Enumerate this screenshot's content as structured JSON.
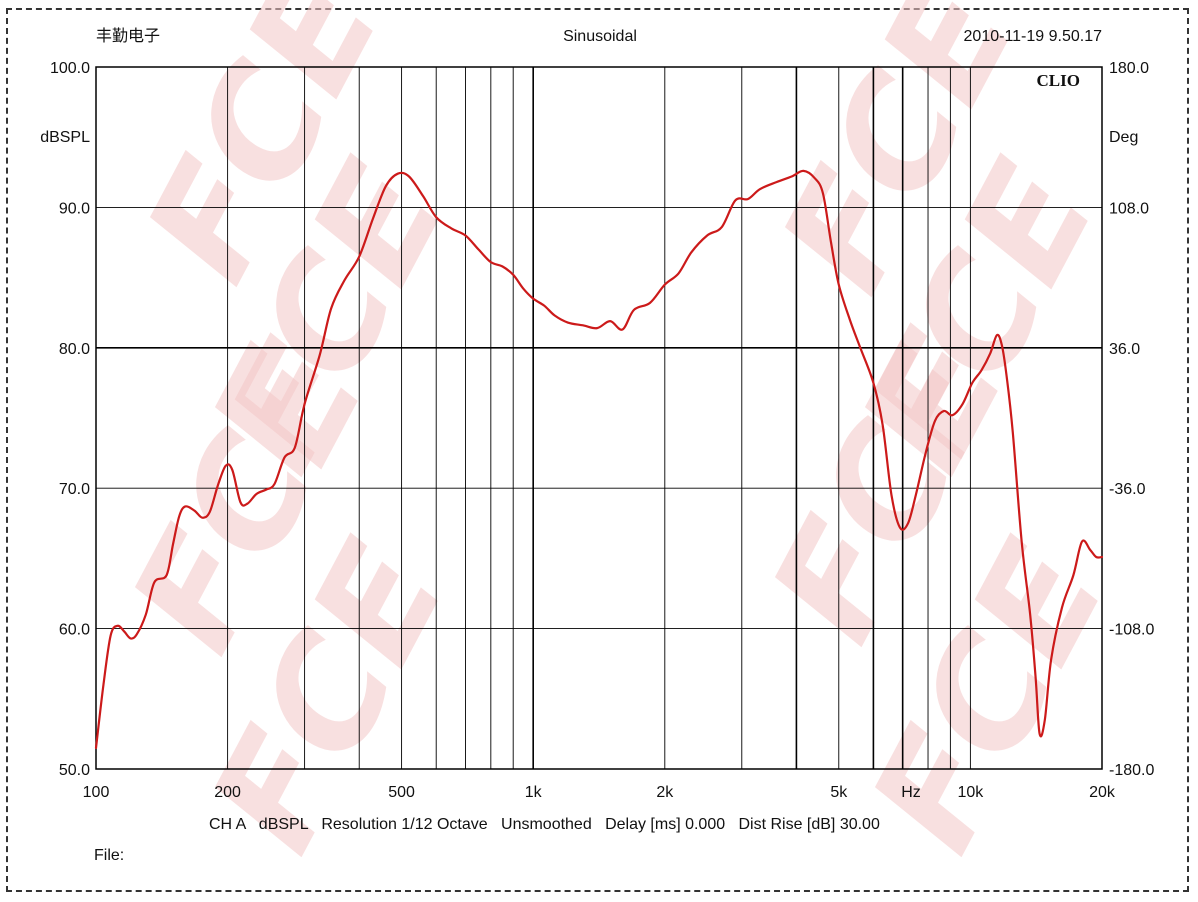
{
  "header": {
    "left": "丰勤电子",
    "center": "Sinusoidal",
    "right": "2010-11-19 9.50.17"
  },
  "brand": "CLIO",
  "watermark": "FCE",
  "footer": {
    "settings": "CH A   dBSPL   Resolution 1/12 Octave   Unsmoothed   Delay [ms] 0.000   Dist Rise [dB] 30.00",
    "file": "File:"
  },
  "colors": {
    "curve": "#cc1a1a",
    "grid": "#000000",
    "watermark": "#f4c7c7"
  },
  "chart_data": {
    "type": "line",
    "x_scale": "log",
    "xlim": [
      100,
      20000
    ],
    "ylim": [
      50,
      100
    ],
    "y2lim": [
      -180,
      180
    ],
    "ylabel": "dBSPL",
    "y2label": "Deg",
    "xunit": "Hz",
    "x_ticks": [
      {
        "v": 100,
        "label": "100"
      },
      {
        "v": 200,
        "label": "200"
      },
      {
        "v": 500,
        "label": "500"
      },
      {
        "v": 1000,
        "label": "1k"
      },
      {
        "v": 2000,
        "label": "2k"
      },
      {
        "v": 5000,
        "label": "5k"
      },
      {
        "v": 10000,
        "label": "10k"
      },
      {
        "v": 20000,
        "label": "20k"
      }
    ],
    "y_ticks": [
      {
        "v": 100,
        "label": "100.0"
      },
      {
        "v": 90,
        "label": "90.0"
      },
      {
        "v": 80,
        "label": "80.0"
      },
      {
        "v": 70,
        "label": "70.0"
      },
      {
        "v": 60,
        "label": "60.0"
      },
      {
        "v": 50,
        "label": "50.0"
      }
    ],
    "y2_ticks": [
      {
        "v": 180,
        "label": "180.0"
      },
      {
        "v": 108,
        "label": "108.0"
      },
      {
        "v": 36,
        "label": "36.0"
      },
      {
        "v": -36,
        "label": "-36.0"
      },
      {
        "v": -108,
        "label": "-108.0"
      },
      {
        "v": -180,
        "label": "-180.0"
      }
    ],
    "grid": true,
    "series": [
      {
        "points": [
          [
            100,
            51.5
          ],
          [
            104,
            56
          ],
          [
            108,
            59.5
          ],
          [
            112,
            60.2
          ],
          [
            116,
            59.8
          ],
          [
            120,
            59.3
          ],
          [
            124,
            59.6
          ],
          [
            130,
            61
          ],
          [
            136,
            63.3
          ],
          [
            145,
            63.8
          ],
          [
            150,
            66
          ],
          [
            155,
            68
          ],
          [
            160,
            68.7
          ],
          [
            168,
            68.4
          ],
          [
            175,
            67.9
          ],
          [
            182,
            68.3
          ],
          [
            190,
            70.2
          ],
          [
            198,
            71.6
          ],
          [
            205,
            71.3
          ],
          [
            214,
            69
          ],
          [
            222,
            68.9
          ],
          [
            233,
            69.6
          ],
          [
            245,
            69.9
          ],
          [
            256,
            70.3
          ],
          [
            270,
            72.2
          ],
          [
            285,
            72.9
          ],
          [
            300,
            76
          ],
          [
            325,
            79.5
          ],
          [
            345,
            82.8
          ],
          [
            370,
            84.8
          ],
          [
            400,
            86.5
          ],
          [
            430,
            89.2
          ],
          [
            460,
            91.5
          ],
          [
            490,
            92.4
          ],
          [
            520,
            92.2
          ],
          [
            560,
            90.8
          ],
          [
            600,
            89.3
          ],
          [
            650,
            88.5
          ],
          [
            700,
            88
          ],
          [
            750,
            87
          ],
          [
            800,
            86.1
          ],
          [
            850,
            85.8
          ],
          [
            900,
            85.2
          ],
          [
            950,
            84.2
          ],
          [
            1000,
            83.5
          ],
          [
            1060,
            83
          ],
          [
            1120,
            82.3
          ],
          [
            1200,
            81.8
          ],
          [
            1300,
            81.6
          ],
          [
            1400,
            81.4
          ],
          [
            1500,
            81.9
          ],
          [
            1600,
            81.3
          ],
          [
            1700,
            82.7
          ],
          [
            1850,
            83.2
          ],
          [
            2000,
            84.5
          ],
          [
            2150,
            85.3
          ],
          [
            2300,
            86.8
          ],
          [
            2500,
            88
          ],
          [
            2700,
            88.6
          ],
          [
            2900,
            90.5
          ],
          [
            3100,
            90.6
          ],
          [
            3300,
            91.3
          ],
          [
            3600,
            91.8
          ],
          [
            3900,
            92.2
          ],
          [
            4150,
            92.6
          ],
          [
            4400,
            92.1
          ],
          [
            4600,
            91
          ],
          [
            4800,
            87.5
          ],
          [
            5000,
            84.5
          ],
          [
            5300,
            82
          ],
          [
            5600,
            80
          ],
          [
            6000,
            77.5
          ],
          [
            6300,
            74.5
          ],
          [
            6600,
            69.5
          ],
          [
            6900,
            67.2
          ],
          [
            7200,
            67.5
          ],
          [
            7500,
            69.5
          ],
          [
            7900,
            72.5
          ],
          [
            8300,
            74.8
          ],
          [
            8700,
            75.5
          ],
          [
            9100,
            75.2
          ],
          [
            9600,
            76
          ],
          [
            10100,
            77.5
          ],
          [
            10600,
            78.4
          ],
          [
            11100,
            79.6
          ],
          [
            11500,
            80.9
          ],
          [
            11800,
            80.2
          ],
          [
            12100,
            78
          ],
          [
            12500,
            74
          ],
          [
            13100,
            66.2
          ],
          [
            13700,
            61
          ],
          [
            14100,
            56.5
          ],
          [
            14400,
            52.5
          ],
          [
            14800,
            53.5
          ],
          [
            15300,
            57.8
          ],
          [
            16200,
            61.5
          ],
          [
            17200,
            63.8
          ],
          [
            18000,
            66.2
          ],
          [
            18800,
            65.6
          ],
          [
            19400,
            65.1
          ],
          [
            20000,
            65.1
          ]
        ]
      }
    ]
  }
}
